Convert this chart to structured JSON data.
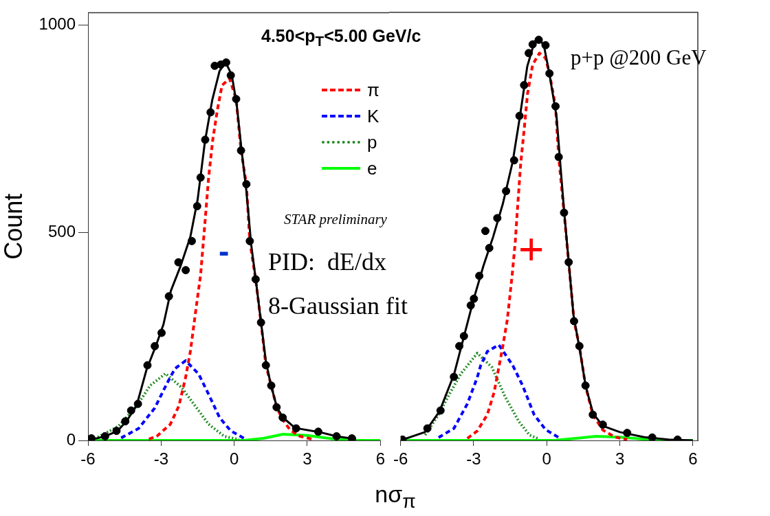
{
  "chart_data": [
    {
      "type": "line",
      "ylabel": "Count",
      "xlabel": "nσ$_{π}$",
      "xlim": [
        -6,
        6
      ],
      "xticks": [
        -6,
        -3,
        0,
        3,
        6
      ],
      "ylim": [
        0,
        1030
      ],
      "yticks": [
        0,
        500,
        1000
      ],
      "legend": "top right",
      "annotations": [
        "4.50<p$_{T}$<5.00 GeV/c",
        "STAR preliminary",
        "-",
        "PID:  dE/dx",
        "8-Gaussian fit"
      ],
      "series": [
        {
          "type": "scatter",
          "marker": "circle",
          "color": "#000000",
          "x": [
            -5.86,
            -5.3,
            -4.83,
            -4.47,
            -4.23,
            -3.95,
            -3.56,
            -3.26,
            -2.98,
            -2.68,
            -2.29,
            -1.99,
            -1.74,
            -1.52,
            -1.38,
            -1.19,
            -0.97,
            -0.8,
            -0.55,
            -0.33,
            -0.14,
            0.08,
            0.28,
            0.5,
            0.64,
            0.88,
            1.1,
            1.3,
            1.52,
            1.74,
            1.99,
            2.54,
            3.45,
            4.2,
            4.83
          ],
          "values": [
            5,
            10,
            23,
            46,
            72,
            88,
            181,
            227,
            259,
            347,
            429,
            410,
            480,
            564,
            633,
            724,
            790,
            902,
            905,
            910,
            879,
            822,
            698,
            617,
            480,
            388,
            284,
            181,
            132,
            80,
            55,
            29,
            21,
            10,
            5
          ]
        },
        {
          "type": "line",
          "line_style": "solid",
          "color": "#000000",
          "x": [
            -6,
            -5.3,
            -4.8,
            -4.4,
            -4,
            -3.6,
            -3.2,
            -2.9,
            -2.6,
            -2.2,
            -1.8,
            -1.5,
            -1.2,
            -0.9,
            -0.6,
            -0.35,
            -0.1,
            0.1,
            0.3,
            0.5,
            0.7,
            0.9,
            1.1,
            1.3,
            1.5,
            1.75,
            2,
            2.5,
            3.5,
            4.2,
            5
          ],
          "values": [
            0,
            10,
            22,
            48,
            85,
            170,
            230,
            280,
            360,
            420,
            490,
            580,
            720,
            820,
            890,
            910,
            880,
            810,
            700,
            600,
            470,
            380,
            285,
            190,
            135,
            80,
            55,
            30,
            20,
            10,
            3
          ]
        },
        {
          "name": "π",
          "type": "line",
          "line_style": "dashed",
          "color": "#ff0000",
          "x": [
            -3.5,
            -3.18,
            -2.62,
            -2.27,
            -1.99,
            -1.8,
            -1.57,
            -1.38,
            -1.24,
            -1.05,
            -0.88,
            -0.69,
            -0.5,
            -0.19,
            0.08,
            0.28,
            0.5,
            0.64,
            0.88,
            1.1,
            1.3,
            1.52,
            1.74,
            1.99,
            2.3,
            2.7,
            3.2
          ],
          "values": [
            3,
            10,
            39,
            83,
            153,
            214,
            316,
            398,
            496,
            633,
            724,
            796,
            855,
            871,
            822,
            698,
            617,
            480,
            388,
            284,
            181,
            132,
            80,
            50,
            25,
            10,
            3
          ]
        },
        {
          "name": "K",
          "type": "line",
          "line_style": "dashed",
          "color": "#0000ff",
          "x": [
            -4.64,
            -3.92,
            -3.26,
            -2.76,
            -2.43,
            -1.99,
            -1.46,
            -1.05,
            -0.6,
            -0.14,
            0.41
          ],
          "values": [
            6,
            29,
            78,
            137,
            173,
            192,
            160,
            111,
            55,
            23,
            5
          ]
        },
        {
          "name": "p",
          "type": "line",
          "line_style": "dotted",
          "color": "#228b22",
          "x": [
            -5.6,
            -4.75,
            -4,
            -3.45,
            -2.82,
            -2.15,
            -1.6,
            -1.05,
            -0.41,
            0.2
          ],
          "values": [
            8,
            34,
            83,
            132,
            161,
            127,
            83,
            39,
            10,
            2
          ]
        },
        {
          "name": "e",
          "type": "line",
          "line_style": "solid",
          "color": "#00ff00",
          "x": [
            -6,
            0.4,
            1.2,
            2,
            3,
            4,
            5,
            6
          ],
          "values": [
            0,
            0,
            5,
            15,
            12,
            4,
            0,
            0
          ]
        }
      ]
    },
    {
      "type": "line",
      "xlim": [
        -6,
        6.2
      ],
      "xticks": [
        -6,
        -3,
        0,
        3,
        6
      ],
      "ylim": [
        0,
        1030
      ],
      "tick_labels": "x",
      "annotations": [
        "p+p @200 GeV",
        "+"
      ],
      "series": [
        {
          "type": "scatter",
          "marker": "circle",
          "color": "#000000",
          "x": [
            -5.92,
            -4.9,
            -4.36,
            -3.81,
            -3.59,
            -3.4,
            -3.12,
            -2.99,
            -2.77,
            -2.52,
            -2.36,
            -2.03,
            -1.67,
            -1.34,
            -1.12,
            -0.93,
            -0.74,
            -0.58,
            -0.33,
            -0.05,
            0.11,
            0.36,
            0.49,
            0.71,
            0.9,
            1.12,
            1.34,
            1.59,
            1.89,
            2.3,
            3.3,
            4.33,
            5.37
          ],
          "values": [
            2,
            29,
            72,
            153,
            227,
            251,
            325,
            341,
            396,
            504,
            463,
            535,
            600,
            674,
            781,
            855,
            932,
            953,
            964,
            951,
            883,
            804,
            682,
            548,
            429,
            287,
            227,
            132,
            62,
            38,
            18,
            7,
            2
          ]
        },
        {
          "type": "line",
          "line_style": "solid",
          "color": "#000000",
          "x": [
            -6,
            -5,
            -4.4,
            -3.8,
            -3.4,
            -3,
            -2.6,
            -2.2,
            -1.8,
            -1.4,
            -1.1,
            -0.8,
            -0.5,
            -0.3,
            -0.1,
            0.1,
            0.4,
            0.7,
            0.9,
            1.1,
            1.35,
            1.6,
            1.9,
            2.3,
            3,
            4,
            5,
            6
          ],
          "values": [
            0,
            20,
            70,
            160,
            250,
            340,
            420,
            490,
            570,
            670,
            780,
            900,
            960,
            970,
            945,
            885,
            780,
            560,
            430,
            300,
            220,
            130,
            65,
            35,
            20,
            8,
            2,
            0
          ]
        },
        {
          "type": "line",
          "line_style": "dashed",
          "color": "#ff0000",
          "x": [
            -3.26,
            -2.85,
            -2.44,
            -2.16,
            -1.95,
            -1.81,
            -1.62,
            -1.42,
            -1.29,
            -1.21,
            -1.07,
            -0.93,
            -0.79,
            -0.58,
            -0.3,
            -0.05,
            0.11,
            0.36,
            0.49,
            0.71,
            0.9,
            1.12,
            1.34,
            1.59,
            1.89,
            2.3,
            2.8,
            3.3
          ],
          "values": [
            5,
            23,
            62,
            116,
            181,
            225,
            290,
            398,
            480,
            551,
            666,
            747,
            834,
            904,
            932,
            920,
            883,
            804,
            682,
            548,
            429,
            287,
            227,
            132,
            62,
            25,
            8,
            2
          ]
        },
        {
          "type": "line",
          "line_style": "dashed",
          "color": "#0000ff",
          "x": [
            -4.44,
            -3.81,
            -3.26,
            -2.85,
            -2.71,
            -2.44,
            -1.97,
            -1.4,
            -0.99,
            -0.52,
            -0.05,
            0.49
          ],
          "values": [
            7,
            29,
            88,
            152,
            181,
            214,
            230,
            181,
            132,
            62,
            26,
            7
          ]
        },
        {
          "type": "line",
          "line_style": "dotted",
          "color": "#228b22",
          "x": [
            -4.99,
            -4.44,
            -4,
            -3.53,
            -2.85,
            -2.25,
            -1.7,
            -1.15,
            -0.71,
            -0.3
          ],
          "values": [
            13,
            62,
            111,
            160,
            210,
            176,
            104,
            46,
            13,
            3
          ]
        },
        {
          "type": "line",
          "line_style": "solid",
          "color": "#00ff00",
          "x": [
            -6,
            0.3,
            1.2,
            2.03,
            3,
            4,
            5,
            6
          ],
          "values": [
            0,
            0,
            5,
            10,
            8,
            3,
            0,
            0
          ]
        }
      ]
    }
  ]
}
